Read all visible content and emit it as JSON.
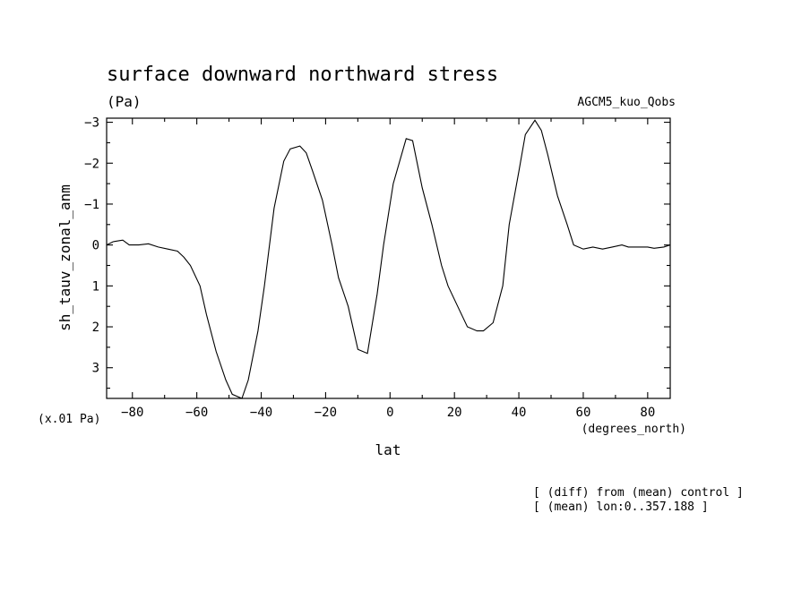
{
  "chart_data": {
    "type": "line",
    "title": "surface downward northward stress",
    "units": "(Pa)",
    "model_label": "AGCM5_kuo_Qobs",
    "ylabel": "sh_tauv_zonal_anm",
    "xlabel": "lat",
    "x_unit_label": "(degrees_north)",
    "y_scale_label": "(x.01 Pa)",
    "notes": [
      "[ (diff) from (mean) control ]",
      "[ (mean) lon:0..357.188 ]"
    ],
    "xlim": [
      -88,
      87
    ],
    "ylim": [
      3.75,
      -3.1
    ],
    "y_inverted": true,
    "xticks": [
      -80,
      -60,
      -40,
      -20,
      0,
      20,
      40,
      60,
      80
    ],
    "xtick_labels": [
      "−80",
      "−60",
      "−40",
      "−20",
      "0",
      "20",
      "40",
      "60",
      "80"
    ],
    "yticks": [
      -3,
      -2,
      -1,
      0,
      1,
      2,
      3
    ],
    "ytick_labels": [
      "−3",
      "−2",
      "−1",
      "0",
      "1",
      "2",
      "3"
    ],
    "series": [
      {
        "x": [
          -88,
          -86,
          -83,
          -81,
          -78,
          -75,
          -72,
          -69,
          -66,
          -64,
          -62,
          -59,
          -57,
          -54,
          -51,
          -49,
          -46,
          -44,
          -41,
          -39,
          -36,
          -33,
          -31,
          -28,
          -26,
          -24,
          -21,
          -18,
          -16,
          -13,
          -10,
          -7,
          -4,
          -2,
          1,
          5,
          7,
          10,
          13,
          16,
          18,
          21,
          24,
          27,
          29,
          32,
          35,
          37,
          40,
          42,
          45,
          47,
          49,
          52,
          55,
          57,
          60,
          63,
          66,
          69,
          72,
          74,
          77,
          80,
          82,
          85,
          87
        ],
        "y": [
          0,
          -0.08,
          -0.12,
          0,
          0,
          -0.03,
          0.05,
          0.1,
          0.15,
          0.3,
          0.5,
          1.0,
          1.7,
          2.6,
          3.3,
          3.65,
          3.75,
          3.3,
          2.1,
          1.0,
          -0.9,
          -2.05,
          -2.35,
          -2.42,
          -2.25,
          -1.8,
          -1.1,
          0,
          0.8,
          1.5,
          2.55,
          2.65,
          1.2,
          0,
          -1.5,
          -2.6,
          -2.55,
          -1.4,
          -0.5,
          0.5,
          1.0,
          1.5,
          2.0,
          2.1,
          2.1,
          1.9,
          1.0,
          -0.5,
          -1.8,
          -2.7,
          -3.05,
          -2.8,
          -2.2,
          -1.2,
          -0.5,
          0,
          0.1,
          0.05,
          0.1,
          0.05,
          0,
          0.05,
          0.05,
          0.05,
          0.08,
          0.05,
          0
        ]
      }
    ]
  }
}
